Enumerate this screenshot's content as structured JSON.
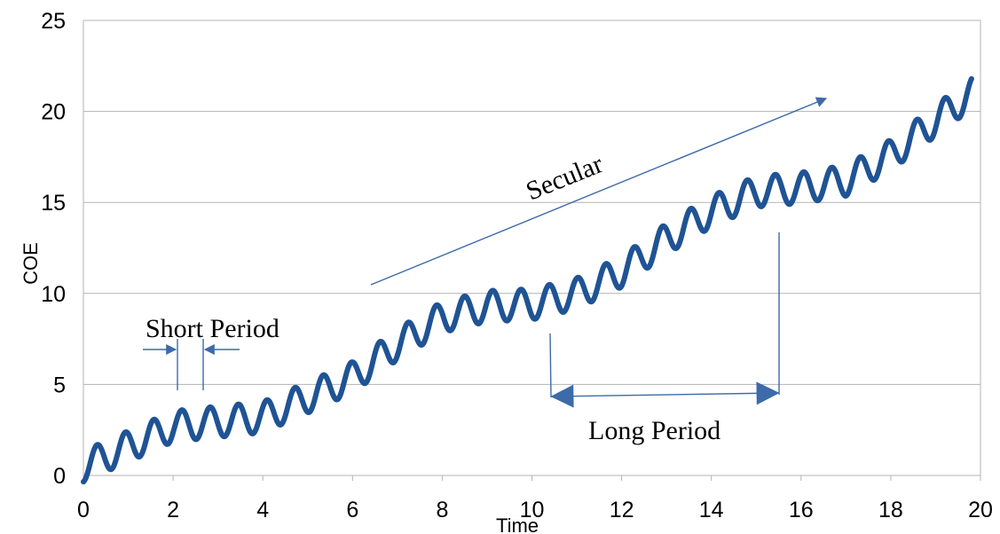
{
  "chart_data": {
    "type": "line",
    "title": "",
    "xlabel": "Time",
    "ylabel": "COE",
    "xlim": [
      0,
      20
    ],
    "ylim": [
      0,
      25
    ],
    "x_ticks": [
      0,
      2,
      4,
      6,
      8,
      10,
      12,
      14,
      16,
      18,
      20
    ],
    "y_ticks": [
      0,
      5,
      10,
      15,
      20,
      25
    ],
    "grid": "horizontal",
    "legend": "none",
    "line_color": "#1f5394",
    "annotation_color": "#3d6aa8",
    "series": [
      {
        "trend": [
          [
            0,
            0.5
          ],
          [
            2,
            2.7
          ],
          [
            4,
            3.2
          ],
          [
            5.2,
            4.5
          ],
          [
            6,
            5.4
          ],
          [
            7,
            7.2
          ],
          [
            8,
            8.7
          ],
          [
            9,
            9.3
          ],
          [
            10,
            9.4
          ],
          [
            11,
            10
          ],
          [
            12,
            11.2
          ],
          [
            13,
            13.0
          ],
          [
            14,
            14.5
          ],
          [
            15,
            15.6
          ],
          [
            16,
            15.8
          ],
          [
            17,
            16.2
          ],
          [
            18,
            17.6
          ],
          [
            19,
            19.5
          ],
          [
            19.8,
            21.0
          ]
        ],
        "short_period_cycle": 0.63,
        "short_period_amplitude": 0.85,
        "x_range": [
          0,
          19.8
        ]
      }
    ],
    "annotations": {
      "short_period": "Short Period",
      "long_period": "Long Period",
      "secular": "Secular"
    }
  }
}
